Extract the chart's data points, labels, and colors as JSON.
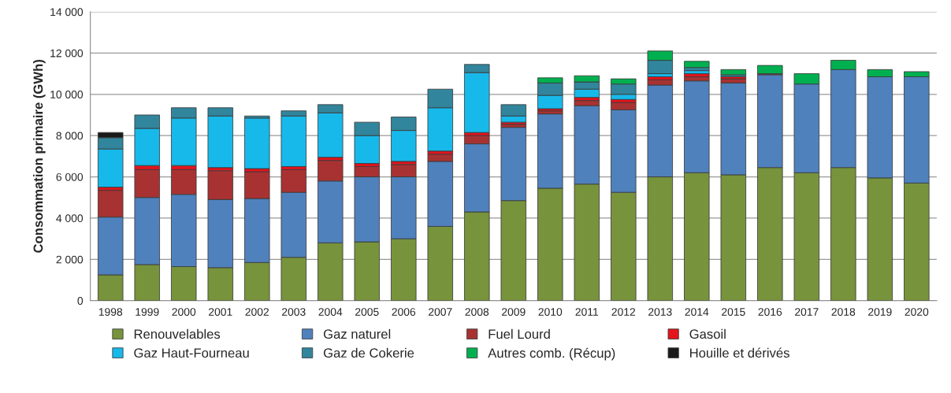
{
  "chart_data": {
    "type": "bar",
    "stacked": true,
    "ylabel": "Consommation primaire (GWh)",
    "categories": [
      "1998",
      "1999",
      "2000",
      "2001",
      "2002",
      "2003",
      "2004",
      "2005",
      "2006",
      "2007",
      "2008",
      "2009",
      "2010",
      "2011",
      "2012",
      "2013",
      "2014",
      "2015",
      "2016",
      "2017",
      "2018",
      "2019",
      "2020"
    ],
    "series": [
      {
        "name": "Renouvelables",
        "color": "#77933c",
        "values": [
          1250,
          1750,
          1650,
          1600,
          1850,
          2100,
          2800,
          2850,
          3000,
          3600,
          4300,
          4850,
          5450,
          5650,
          5250,
          6000,
          6200,
          6100,
          6450,
          6200,
          6450,
          5950,
          5700
        ]
      },
      {
        "name": "Gaz naturel",
        "color": "#4f81bd",
        "values": [
          2800,
          3250,
          3500,
          3300,
          3100,
          3150,
          3000,
          3150,
          3000,
          3150,
          3300,
          3550,
          3600,
          3800,
          4000,
          4450,
          4450,
          4450,
          4500,
          4300,
          4750,
          4900,
          5150
        ]
      },
      {
        "name": "Fuel Lourd",
        "color": "#a83232",
        "values": [
          1300,
          1350,
          1200,
          1400,
          1300,
          1100,
          1000,
          500,
          600,
          350,
          400,
          150,
          150,
          250,
          350,
          250,
          200,
          200,
          50,
          0,
          0,
          0,
          0
        ]
      },
      {
        "name": "Gasoil",
        "color": "#e3141c",
        "values": [
          150,
          200,
          200,
          150,
          150,
          150,
          150,
          150,
          150,
          150,
          150,
          100,
          100,
          150,
          150,
          150,
          150,
          100,
          0,
          0,
          0,
          0,
          0
        ]
      },
      {
        "name": "Gaz Haut-Fourneau",
        "color": "#17b9ea",
        "values": [
          1850,
          1800,
          2300,
          2500,
          2450,
          2450,
          2150,
          1350,
          1500,
          2100,
          2900,
          300,
          650,
          400,
          250,
          150,
          150,
          0,
          0,
          0,
          0,
          0,
          0
        ]
      },
      {
        "name": "Gaz de Cokerie",
        "color": "#31859c",
        "values": [
          550,
          650,
          500,
          400,
          100,
          250,
          400,
          650,
          650,
          900,
          400,
          550,
          600,
          350,
          500,
          650,
          150,
          100,
          0,
          0,
          0,
          0,
          0
        ]
      },
      {
        "name": "Autres comb. (Récup)",
        "color": "#00b050",
        "values": [
          0,
          0,
          0,
          0,
          0,
          0,
          0,
          0,
          0,
          0,
          0,
          0,
          250,
          300,
          250,
          450,
          300,
          250,
          400,
          500,
          450,
          350,
          250
        ]
      },
      {
        "name": "Houille et dérivés",
        "color": "#1a1a1a",
        "values": [
          250,
          0,
          0,
          0,
          0,
          0,
          0,
          0,
          0,
          0,
          0,
          0,
          0,
          0,
          0,
          0,
          0,
          0,
          0,
          0,
          0,
          0,
          0
        ]
      }
    ],
    "ylim": [
      0,
      14000
    ],
    "yticks": [
      0,
      {
        "value": 2000,
        "label": "2 000"
      },
      {
        "value": 4000,
        "label": "4 000"
      },
      {
        "value": 6000,
        "label": "6 000"
      },
      {
        "value": 8000,
        "label": "8 000"
      },
      {
        "value": 10000,
        "label": "10 000"
      },
      {
        "value": 12000,
        "label": "12 000"
      },
      {
        "value": 14000,
        "label": "14 000"
      }
    ],
    "grid": "y",
    "legend": "bottom"
  }
}
